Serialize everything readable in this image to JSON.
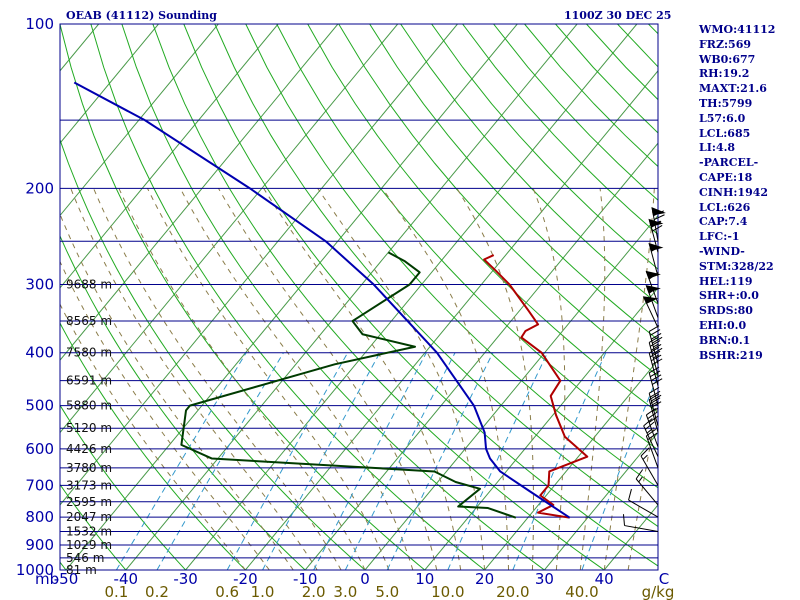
{
  "header": {
    "station": "OEAB (41112) Sounding",
    "valid_time": "1100Z 30 DEC 25"
  },
  "stats": [
    "WMO:41112",
    "FRZ:569",
    "WB0:677",
    "RH:19.2",
    "MAXT:21.6",
    "TH:5799",
    "L57:6.0",
    "LCL:685",
    "LI:4.8",
    "-PARCEL-",
    "CAPE:18",
    "CINH:1942",
    "LCL:626",
    "CAP:7.4",
    "LFC:-1",
    "-WIND-",
    "STM:328/22",
    "HEL:119",
    "SHR+:0.0",
    "SRDS:80",
    "EHI:0.0",
    "BRN:0.1",
    "BSHR:219"
  ],
  "colors": {
    "isobar": "#00008b",
    "isotherm": "#4a9a4a",
    "dry_adiabat": "#22aa22",
    "moist_adiabat": "#8b7d4a",
    "mixing_ratio": "#3399cc",
    "temperature": "#b00000",
    "dewpoint": "#003b00",
    "parcel": "#0000b0",
    "wind_barb": "#000000"
  },
  "chart_data": {
    "type": "line",
    "diagram": "skew-T log-p",
    "title": "OEAB (41112) Sounding",
    "y_scale": "log",
    "ylim": [
      1000,
      100
    ],
    "xlim": [
      -50,
      50
    ],
    "pressure_axis_label": "mb",
    "pressure_ticks": [
      1000,
      900,
      800,
      700,
      600,
      500,
      400,
      300,
      200,
      100
    ],
    "temperature_ticks": [
      -50,
      -40,
      -30,
      -20,
      -10,
      0,
      10,
      20,
      30,
      40,
      50
    ],
    "temperature_tick_labels": [
      "-50",
      "-40",
      "-30",
      "-20",
      "-10",
      "0",
      "10",
      "20",
      "30",
      "40",
      "C"
    ],
    "mixing_ratio_ticks": [
      0.1,
      0.2,
      0.6,
      1.0,
      2.0,
      3.0,
      5.0,
      10.0,
      20.0,
      40.0
    ],
    "mixing_ratio_tick_labels": [
      "0.1",
      "0.2",
      "0.6",
      "1.0",
      "2.0",
      "3.0",
      "5.0",
      "10.0",
      "20.0",
      "40.0",
      "g/kg"
    ],
    "heights": [
      {
        "label": "9688 m",
        "p": 300
      },
      {
        "label": "8565 m",
        "p": 350
      },
      {
        "label": "7580 m",
        "p": 400
      },
      {
        "label": "6591 m",
        "p": 450
      },
      {
        "label": "5880 m",
        "p": 500
      },
      {
        "label": "5120 m",
        "p": 550
      },
      {
        "label": "4426 m",
        "p": 600
      },
      {
        "label": "3780 m",
        "p": 650
      },
      {
        "label": "3173 m",
        "p": 700
      },
      {
        "label": "2595 m",
        "p": 750
      },
      {
        "label": "2047 m",
        "p": 800
      },
      {
        "label": "1532 m",
        "p": 850
      },
      {
        "label": "1029 m",
        "p": 900
      },
      {
        "label": "546 m",
        "p": 950
      },
      {
        "label": "81 m",
        "p": 1000
      }
    ],
    "series": [
      {
        "key": "temperature",
        "points": [
          {
            "p": 802,
            "t": 27.0
          },
          {
            "p": 785,
            "t": 21.0
          },
          {
            "p": 760,
            "t": 22.5
          },
          {
            "p": 730,
            "t": 19.0
          },
          {
            "p": 700,
            "t": 19.0
          },
          {
            "p": 660,
            "t": 17.2
          },
          {
            "p": 620,
            "t": 21.5
          },
          {
            "p": 570,
            "t": 15.0
          },
          {
            "p": 520,
            "t": 10.5
          },
          {
            "p": 480,
            "t": 7.0
          },
          {
            "p": 450,
            "t": 6.5
          },
          {
            "p": 400,
            "t": -0.5
          },
          {
            "p": 375,
            "t": -6.0
          },
          {
            "p": 365,
            "t": -6.2
          },
          {
            "p": 355,
            "t": -5.0
          },
          {
            "p": 335,
            "t": -8.5
          },
          {
            "p": 300,
            "t": -15.3
          },
          {
            "p": 283,
            "t": -19.5
          },
          {
            "p": 270,
            "t": -23.0
          },
          {
            "p": 265,
            "t": -22.0
          }
        ]
      },
      {
        "key": "dewpoint",
        "points": [
          {
            "p": 802,
            "t": 18.0
          },
          {
            "p": 770,
            "t": 12.0
          },
          {
            "p": 765,
            "t": 6.8
          },
          {
            "p": 710,
            "t": 8.0
          },
          {
            "p": 690,
            "t": 3.0
          },
          {
            "p": 660,
            "t": -2.0
          },
          {
            "p": 625,
            "t": -41.0
          },
          {
            "p": 590,
            "t": -48.0
          },
          {
            "p": 510,
            "t": -52.0
          },
          {
            "p": 500,
            "t": -52.0
          },
          {
            "p": 455,
            "t": -42.0
          },
          {
            "p": 420,
            "t": -33.5
          },
          {
            "p": 390,
            "t": -22.5
          },
          {
            "p": 370,
            "t": -33.0
          },
          {
            "p": 350,
            "t": -36.5
          },
          {
            "p": 300,
            "t": -32.0
          },
          {
            "p": 285,
            "t": -32.0
          },
          {
            "p": 272,
            "t": -36.0
          },
          {
            "p": 262,
            "t": -40.0
          }
        ]
      },
      {
        "key": "parcel",
        "points": [
          {
            "p": 802,
            "t": 27.0
          },
          {
            "p": 720,
            "t": 17.0
          },
          {
            "p": 660,
            "t": 9.0
          },
          {
            "p": 625,
            "t": 5.5
          },
          {
            "p": 600,
            "t": 3.5
          },
          {
            "p": 560,
            "t": 1.0
          },
          {
            "p": 500,
            "t": -4.5
          },
          {
            "p": 400,
            "t": -18.0
          },
          {
            "p": 300,
            "t": -38.0
          },
          {
            "p": 250,
            "t": -52.0
          },
          {
            "p": 200,
            "t": -72.0
          },
          {
            "p": 150,
            "t": -99.0
          },
          {
            "p": 128,
            "t": -116.0
          }
        ]
      }
    ],
    "wind_barbs": [
      {
        "p": 250,
        "dir": 350,
        "kt": 75
      },
      {
        "p": 262,
        "dir": 345,
        "kt": 70
      },
      {
        "p": 290,
        "dir": 345,
        "kt": 55
      },
      {
        "p": 325,
        "dir": 340,
        "kt": 60
      },
      {
        "p": 345,
        "dir": 340,
        "kt": 55
      },
      {
        "p": 360,
        "dir": 335,
        "kt": 50
      },
      {
        "p": 420,
        "dir": 345,
        "kt": 45
      },
      {
        "p": 440,
        "dir": 345,
        "kt": 45
      },
      {
        "p": 460,
        "dir": 345,
        "kt": 40
      },
      {
        "p": 500,
        "dir": 345,
        "kt": 40
      },
      {
        "p": 545,
        "dir": 345,
        "kt": 35
      },
      {
        "p": 560,
        "dir": 345,
        "kt": 35
      },
      {
        "p": 595,
        "dir": 340,
        "kt": 30
      },
      {
        "p": 620,
        "dir": 335,
        "kt": 25
      },
      {
        "p": 650,
        "dir": 340,
        "kt": 20
      },
      {
        "p": 700,
        "dir": 330,
        "kt": 15
      },
      {
        "p": 760,
        "dir": 320,
        "kt": 15
      },
      {
        "p": 800,
        "dir": 300,
        "kt": 10
      },
      {
        "p": 850,
        "dir": 280,
        "kt": 10
      }
    ]
  }
}
